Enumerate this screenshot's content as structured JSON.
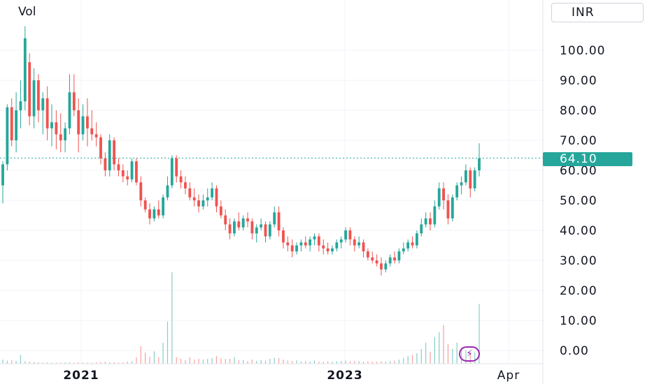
{
  "header": {
    "volume_label": "Vol",
    "currency_label": "INR"
  },
  "last_price": "64.10",
  "colors": {
    "up": "#26a69a",
    "down": "#ef5350",
    "grid": "#f0f3fa",
    "price_line": "#26a69a",
    "bolt": "#9c27b0"
  },
  "icons": {
    "bolt": "lightning-bolt-icon"
  },
  "chart_data": {
    "type": "candlestick",
    "y_axis": {
      "min": 0,
      "max": 100,
      "ticks": [
        "100.00",
        "90.00",
        "80.00",
        "70.00",
        "60.00",
        "50.00",
        "40.00",
        "30.00",
        "20.00",
        "10.00",
        "0.00"
      ]
    },
    "x_axis": {
      "ticks": [
        "2021",
        "2023",
        "Apr"
      ]
    },
    "grid": true,
    "ohlc": [
      [
        55,
        63,
        49,
        62
      ],
      [
        62,
        82,
        60,
        81
      ],
      [
        81,
        84,
        68,
        70
      ],
      [
        70,
        86,
        66,
        80
      ],
      [
        80,
        90,
        74,
        83
      ],
      [
        83,
        108,
        80,
        104
      ],
      [
        96,
        99,
        75,
        78
      ],
      [
        78,
        94,
        74,
        90
      ],
      [
        90,
        92,
        76,
        80
      ],
      [
        80,
        86,
        72,
        84
      ],
      [
        84,
        88,
        70,
        74
      ],
      [
        74,
        82,
        68,
        76
      ],
      [
        76,
        80,
        67,
        72
      ],
      [
        72,
        79,
        66,
        70
      ],
      [
        70,
        76,
        66,
        74
      ],
      [
        74,
        92,
        72,
        86
      ],
      [
        86,
        92,
        78,
        80
      ],
      [
        80,
        84,
        66,
        72
      ],
      [
        72,
        82,
        70,
        78
      ],
      [
        78,
        84,
        68,
        74
      ],
      [
        74,
        80,
        70,
        72
      ],
      [
        72,
        76,
        68,
        71
      ],
      [
        71,
        72,
        62,
        64
      ],
      [
        64,
        66,
        58,
        60
      ],
      [
        60,
        72,
        58,
        70
      ],
      [
        70,
        71,
        60,
        62
      ],
      [
        62,
        64,
        58,
        60
      ],
      [
        60,
        62,
        56,
        58
      ],
      [
        58,
        60,
        55,
        57
      ],
      [
        57,
        64,
        56,
        63
      ],
      [
        63,
        64,
        55,
        56
      ],
      [
        56,
        58,
        48,
        50
      ],
      [
        50,
        51,
        46,
        47
      ],
      [
        47,
        49,
        42,
        44
      ],
      [
        44,
        48,
        43,
        47
      ],
      [
        47,
        50,
        44,
        45
      ],
      [
        45,
        52,
        44,
        51
      ],
      [
        51,
        58,
        50,
        55
      ],
      [
        55,
        65,
        54,
        64
      ],
      [
        64,
        65,
        56,
        58
      ],
      [
        58,
        60,
        54,
        56
      ],
      [
        56,
        58,
        52,
        54
      ],
      [
        54,
        56,
        50,
        51
      ],
      [
        51,
        54,
        48,
        50
      ],
      [
        50,
        52,
        46,
        48
      ],
      [
        48,
        52,
        47,
        50
      ],
      [
        50,
        54,
        48,
        51
      ],
      [
        51,
        56,
        50,
        54
      ],
      [
        54,
        55,
        46,
        48
      ],
      [
        48,
        50,
        44,
        45
      ],
      [
        45,
        47,
        40,
        42
      ],
      [
        42,
        44,
        37,
        39
      ],
      [
        39,
        44,
        38,
        43
      ],
      [
        43,
        46,
        40,
        41
      ],
      [
        41,
        45,
        40,
        44
      ],
      [
        44,
        46,
        41,
        43
      ],
      [
        43,
        44,
        37,
        39
      ],
      [
        39,
        42,
        36,
        41
      ],
      [
        41,
        44,
        40,
        42
      ],
      [
        42,
        43,
        36,
        38
      ],
      [
        38,
        43,
        37,
        42
      ],
      [
        42,
        48,
        41,
        46
      ],
      [
        46,
        48,
        38,
        40
      ],
      [
        40,
        41,
        34,
        36
      ],
      [
        36,
        38,
        33,
        35
      ],
      [
        35,
        37,
        31,
        33
      ],
      [
        33,
        36,
        32,
        35
      ],
      [
        35,
        37,
        33,
        36
      ],
      [
        36,
        38,
        34,
        35
      ],
      [
        35,
        38,
        33,
        37
      ],
      [
        37,
        39,
        35,
        38
      ],
      [
        38,
        39,
        33,
        35
      ],
      [
        35,
        37,
        32,
        34
      ],
      [
        34,
        36,
        32,
        33
      ],
      [
        33,
        35,
        32,
        34
      ],
      [
        34,
        37,
        33,
        36
      ],
      [
        36,
        38,
        34,
        37
      ],
      [
        37,
        41,
        36,
        40
      ],
      [
        40,
        41,
        35,
        37
      ],
      [
        37,
        38,
        33,
        35
      ],
      [
        35,
        38,
        34,
        36
      ],
      [
        36,
        37,
        31,
        33
      ],
      [
        33,
        34,
        30,
        31
      ],
      [
        31,
        33,
        29,
        30
      ],
      [
        30,
        32,
        28,
        29
      ],
      [
        29,
        31,
        25,
        27
      ],
      [
        27,
        30,
        26,
        29
      ],
      [
        29,
        32,
        28,
        31
      ],
      [
        31,
        33,
        29,
        30
      ],
      [
        30,
        34,
        29,
        33
      ],
      [
        33,
        36,
        32,
        34
      ],
      [
        34,
        37,
        33,
        36
      ],
      [
        36,
        38,
        34,
        35
      ],
      [
        35,
        40,
        34,
        39
      ],
      [
        39,
        44,
        38,
        42
      ],
      [
        42,
        46,
        41,
        44
      ],
      [
        44,
        46,
        40,
        42
      ],
      [
        42,
        50,
        41,
        48
      ],
      [
        48,
        56,
        47,
        54
      ],
      [
        54,
        56,
        47,
        50
      ],
      [
        50,
        52,
        42,
        44
      ],
      [
        44,
        52,
        43,
        51
      ],
      [
        51,
        56,
        50,
        55
      ],
      [
        55,
        58,
        52,
        56
      ],
      [
        56,
        62,
        55,
        60
      ],
      [
        60,
        61,
        51,
        54
      ],
      [
        54,
        61,
        53,
        60
      ],
      [
        60,
        69,
        58,
        64
      ]
    ],
    "volume": [
      1.2,
      0.9,
      1.0,
      0.8,
      2.5,
      0.7,
      0.6,
      0.5,
      0.4,
      0.3,
      0.4,
      0.3,
      0.3,
      0.3,
      0.4,
      0.4,
      0.3,
      0.4,
      0.3,
      0.3,
      0.3,
      0.4,
      0.5,
      0.6,
      0.4,
      0.4,
      0.4,
      0.4,
      0.6,
      0.7,
      1.8,
      5.0,
      3.2,
      2.0,
      3.5,
      1.8,
      6.0,
      12.0,
      26.0,
      1.9,
      1.4,
      1.0,
      1.8,
      1.2,
      1.4,
      1.2,
      1.4,
      1.6,
      2.2,
      1.5,
      1.4,
      1.4,
      1.9,
      1.0,
      1.1,
      0.8,
      1.2,
      0.8,
      1.1,
      0.9,
      1.4,
      1.7,
      1.6,
      1.2,
      0.9,
      0.8,
      1.0,
      0.7,
      0.8,
      0.6,
      0.9,
      0.6,
      0.6,
      0.7,
      0.6,
      0.7,
      0.8,
      0.9,
      0.7,
      0.8,
      0.7,
      0.6,
      0.7,
      0.6,
      0.6,
      0.7,
      0.6,
      0.8,
      0.9,
      1.2,
      1.6,
      2.2,
      2.5,
      3.0,
      4.2,
      6.0,
      3.4,
      7.6,
      9.0,
      11.0,
      5.6,
      4.2,
      6.0,
      4.5,
      3.8,
      2.9,
      3.2,
      17.0
    ]
  }
}
